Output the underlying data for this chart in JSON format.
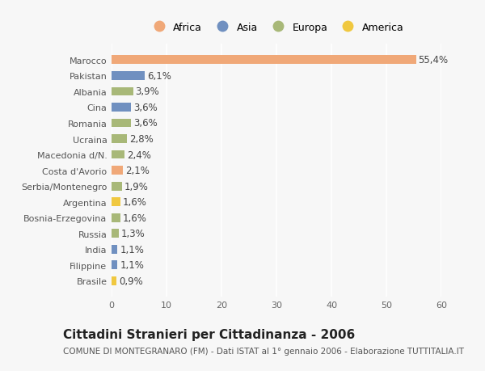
{
  "title": "Cittadini Stranieri per Cittadinanza - 2006",
  "subtitle": "COMUNE DI MONTEGRANARO (FM) - Dati ISTAT al 1° gennaio 2006 - Elaborazione TUTTITALIA.IT",
  "categories": [
    "Brasile",
    "Filippine",
    "India",
    "Russia",
    "Bosnia-Erzegovina",
    "Argentina",
    "Serbia/Montenegro",
    "Costa d'Avorio",
    "Macedonia d/N.",
    "Ucraina",
    "Romania",
    "Cina",
    "Albania",
    "Pakistan",
    "Marocco"
  ],
  "values": [
    0.9,
    1.1,
    1.1,
    1.3,
    1.6,
    1.6,
    1.9,
    2.1,
    2.4,
    2.8,
    3.6,
    3.6,
    3.9,
    6.1,
    55.4
  ],
  "continents": [
    "America",
    "Asia",
    "Asia",
    "Europa",
    "Europa",
    "America",
    "Europa",
    "Africa",
    "Europa",
    "Europa",
    "Europa",
    "Asia",
    "Europa",
    "Asia",
    "Africa"
  ],
  "continent_colors": {
    "Africa": "#F0A878",
    "Asia": "#7090C0",
    "Europa": "#A8B878",
    "America": "#F0C840"
  },
  "legend_order": [
    "Africa",
    "Asia",
    "Europa",
    "America"
  ],
  "xlim": [
    0,
    60
  ],
  "xticks": [
    0,
    10,
    20,
    30,
    40,
    50,
    60
  ],
  "background_color": "#f7f7f7",
  "bar_height": 0.55,
  "label_fontsize": 8.5,
  "ytick_fontsize": 8,
  "xtick_fontsize": 8,
  "title_fontsize": 11,
  "subtitle_fontsize": 7.5
}
